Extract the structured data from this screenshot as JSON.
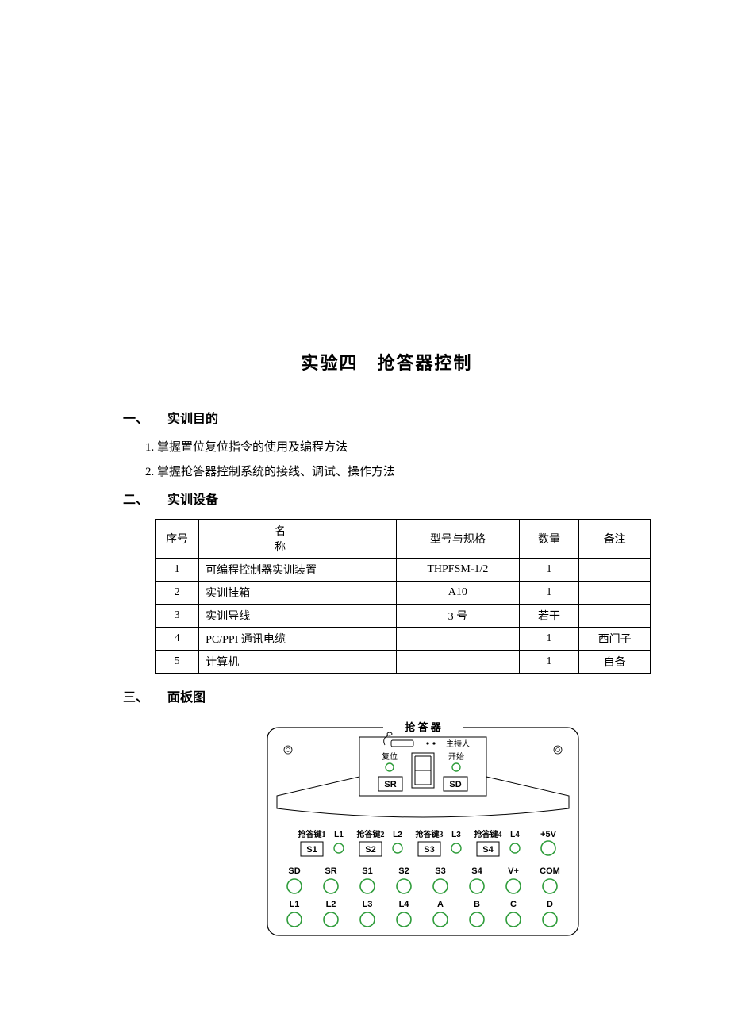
{
  "title": "实验四　抢答器控制",
  "sections": {
    "s1": {
      "num": "一、",
      "label": "实训目的"
    },
    "s2": {
      "num": "二、",
      "label": "实训设备"
    },
    "s3": {
      "num": "三、",
      "label": "面板图"
    }
  },
  "objectives": [
    "1. 掌握置位复位指令的使用及编程方法",
    "2. 掌握抢答器控制系统的接线、调试、操作方法"
  ],
  "equip_header": {
    "seq": "序号",
    "name": "名　　　称",
    "spec": "型号与规格",
    "qty": "数量",
    "note": "备注"
  },
  "equipment": [
    {
      "seq": "1",
      "name": "可编程控制器实训装置",
      "spec": "THPFSM-1/2",
      "qty": "1",
      "note": ""
    },
    {
      "seq": "2",
      "name": "实训挂箱",
      "spec": "A10",
      "qty": "1",
      "note": ""
    },
    {
      "seq": "3",
      "name": "实训导线",
      "spec": "3 号",
      "qty": "若干",
      "note": ""
    },
    {
      "seq": "4",
      "name": "PC/PPI 通讯电缆",
      "spec": "",
      "qty": "1",
      "note": "西门子"
    },
    {
      "seq": "5",
      "name": "计算机",
      "spec": "",
      "qty": "1",
      "note": "自备"
    }
  ],
  "panel": {
    "title": "抢 答 器",
    "host_label": "主持人",
    "reset_label": "复位",
    "start_label": "开始",
    "sr_text": "SR",
    "sd_text": "SD",
    "answer_keys": [
      {
        "label": "抢答键1",
        "btn": "S1",
        "led": "L1"
      },
      {
        "label": "抢答键2",
        "btn": "S2",
        "led": "L2"
      },
      {
        "label": "抢答键3",
        "btn": "S3",
        "led": "L3"
      },
      {
        "label": "抢答键4",
        "btn": "S4",
        "led": "L4"
      }
    ],
    "plus5v": "+5V",
    "row_mid": [
      "SD",
      "SR",
      "S1",
      "S2",
      "S3",
      "S4",
      "V+",
      "COM"
    ],
    "row_bot": [
      "L1",
      "L2",
      "L3",
      "L4",
      "A",
      "B",
      "C",
      "D"
    ],
    "colors": {
      "panel_border": "#000000",
      "green": "#2e9c3a",
      "text": "#000000",
      "bg": "#ffffff"
    }
  }
}
